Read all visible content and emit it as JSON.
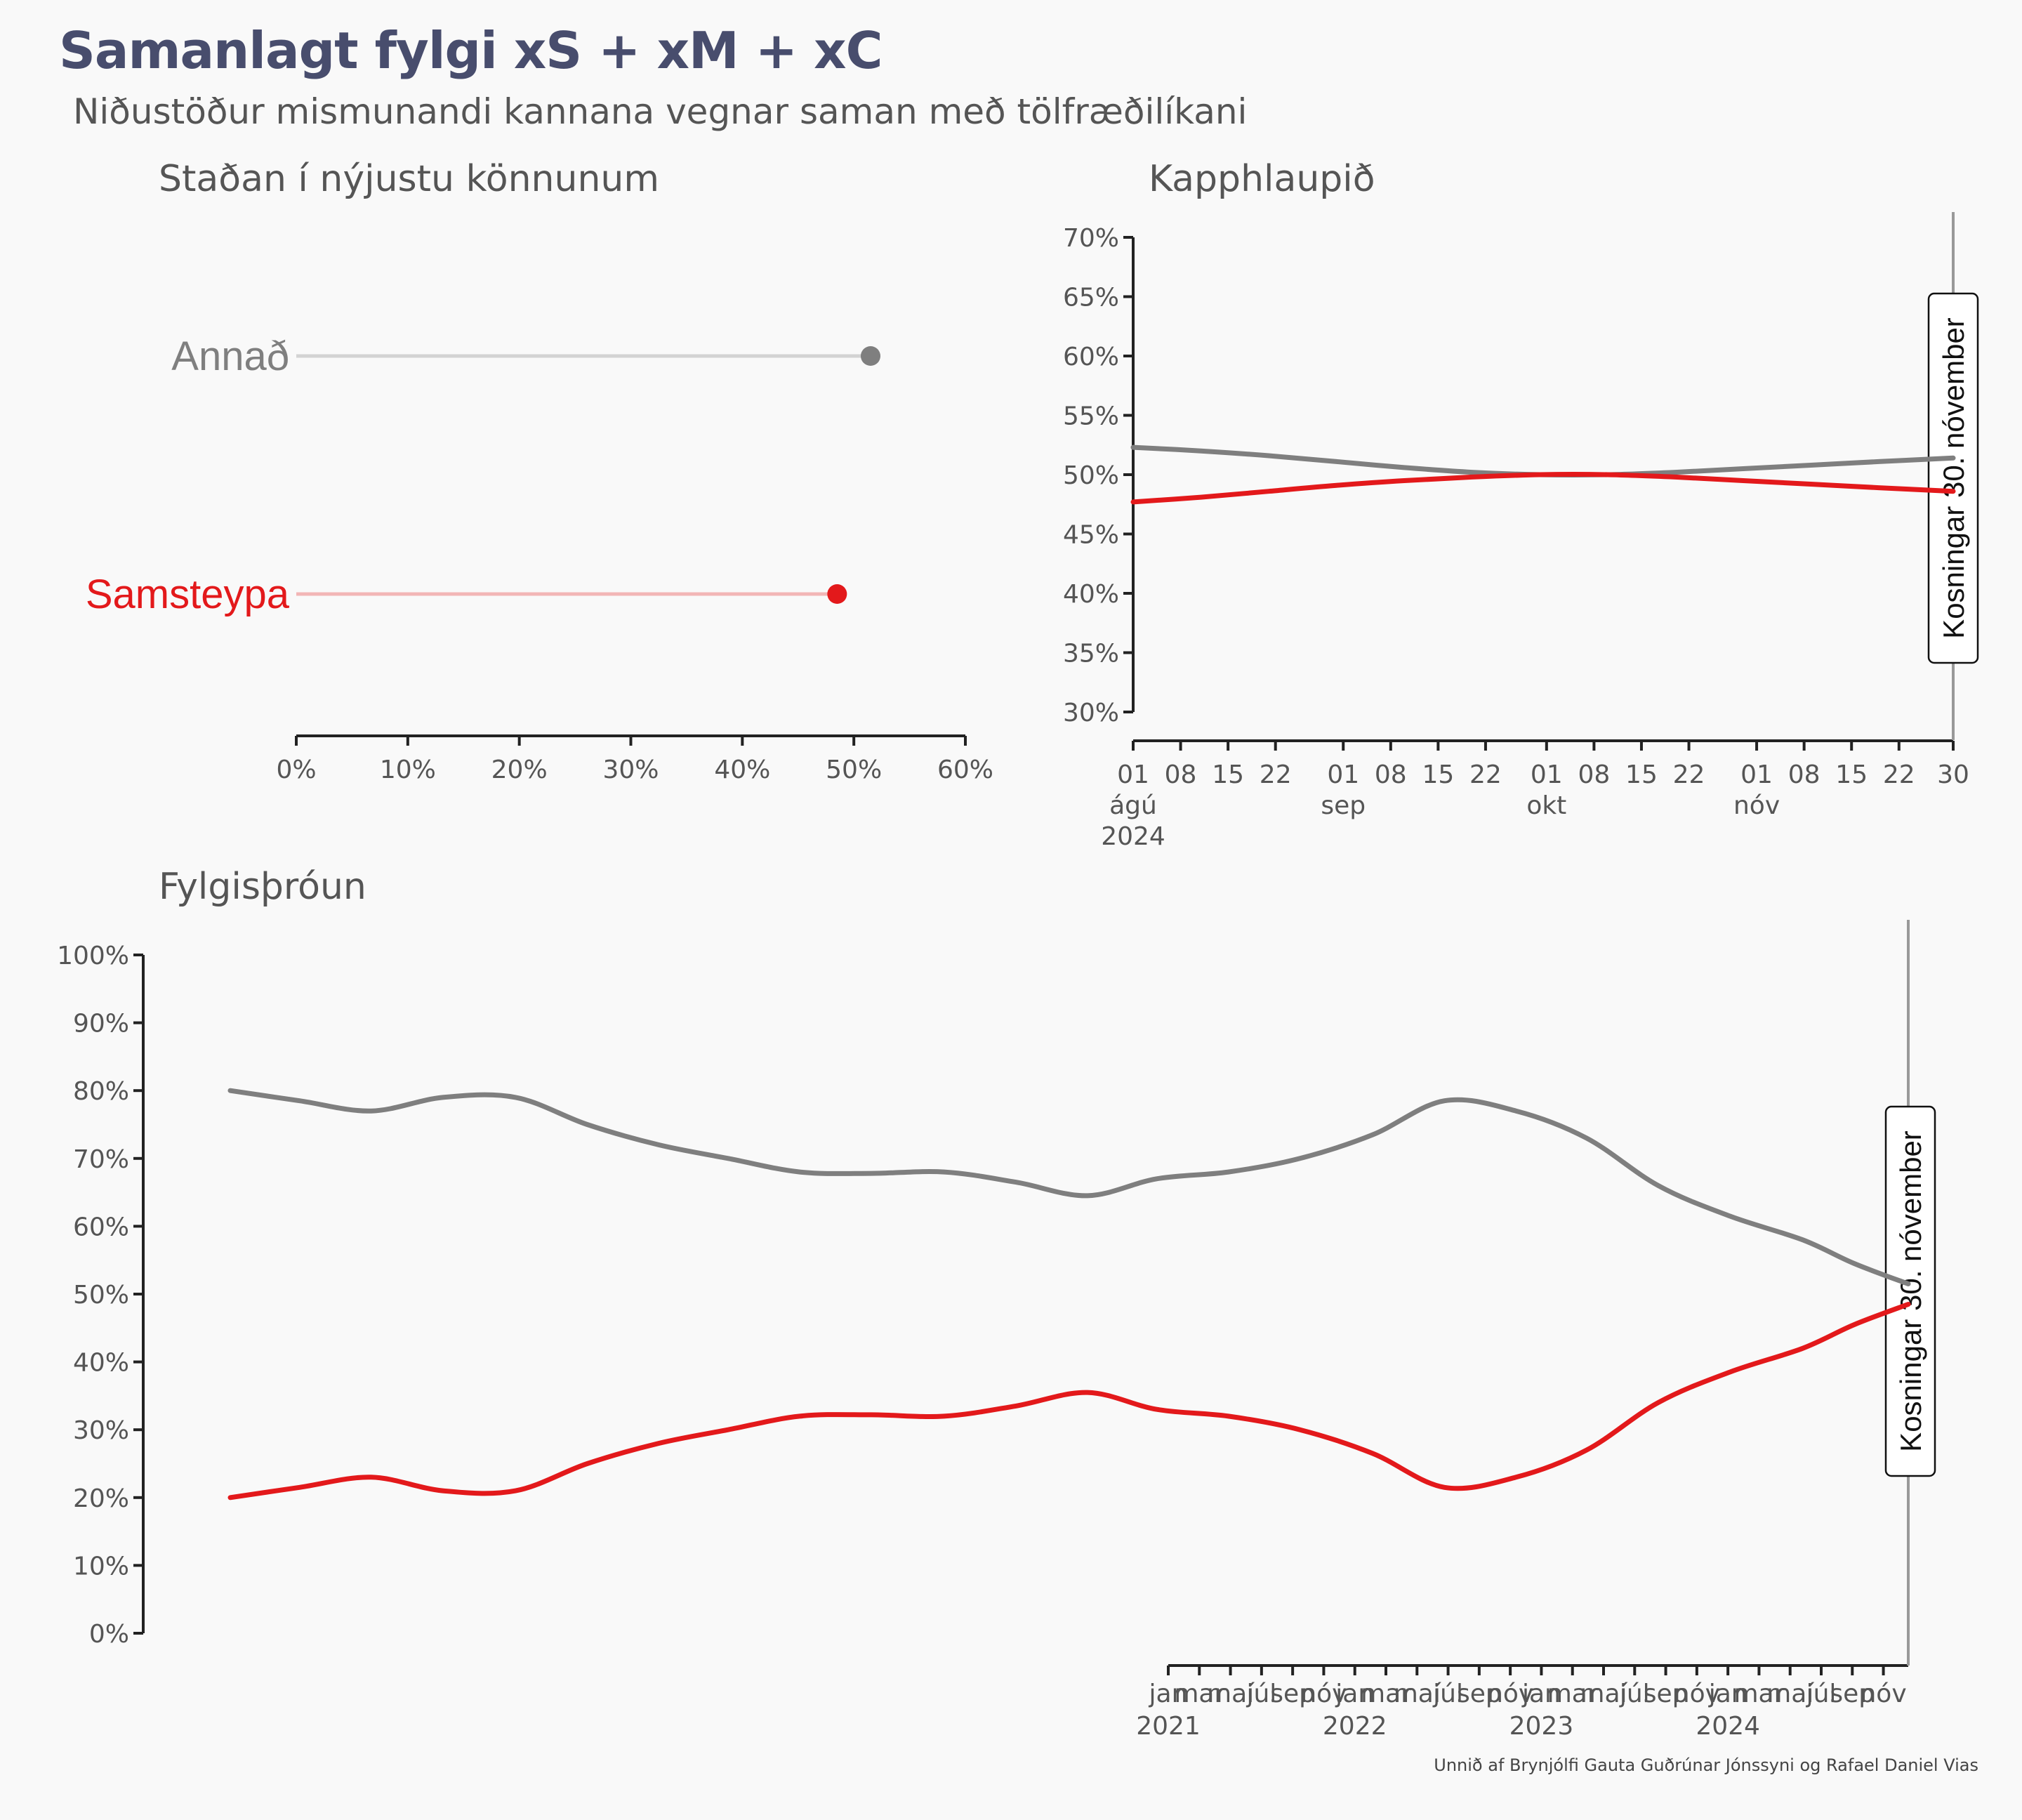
{
  "header": {
    "title": "Samanlagt fylgi xS + xM + xC",
    "subtitle": "Niðustöður mismunandi kannana vegnar saman með tölfræðilíkani"
  },
  "caption": "Unnið af Brynjólfi Gauta Guðrúnar Jónssyni og Rafael Daniel Vias",
  "colors": {
    "samsteypa": "#e3191b",
    "annad": "#7f7f7f",
    "samsteypa_light": "#f2b6b6",
    "annad_light": "#d3d3d3",
    "title": "#484d6d"
  },
  "election_label": "Kosningar 30. nóvember",
  "chart_data": [
    {
      "id": "latest",
      "type": "dot",
      "title": "Staðan í nýjustu könnunum",
      "categories": [
        "Annað",
        "Samsteypa"
      ],
      "values": [
        51.5,
        48.5
      ],
      "xlim": [
        0,
        60
      ],
      "xticks": [
        0,
        10,
        20,
        30,
        40,
        50,
        60
      ],
      "xtick_labels": [
        "0%",
        "10%",
        "20%",
        "30%",
        "40%",
        "50%",
        "60%"
      ]
    },
    {
      "id": "race",
      "type": "line",
      "title": "Kapphlaupið",
      "x_dates": [
        "2024-08-01",
        "2024-08-11",
        "2024-08-21",
        "2024-08-31",
        "2024-09-10",
        "2024-09-20",
        "2024-09-30",
        "2024-10-10",
        "2024-10-20",
        "2024-10-30",
        "2024-11-09",
        "2024-11-19",
        "2024-11-30"
      ],
      "series": [
        {
          "name": "Annað",
          "values": [
            52.3,
            52.0,
            51.6,
            51.1,
            50.6,
            50.2,
            50.0,
            50.0,
            50.2,
            50.5,
            50.8,
            51.1,
            51.4
          ]
        },
        {
          "name": "Samsteypa",
          "values": [
            47.7,
            48.1,
            48.6,
            49.1,
            49.5,
            49.8,
            50.0,
            50.0,
            49.8,
            49.5,
            49.2,
            48.9,
            48.6
          ]
        }
      ],
      "ylim": [
        30,
        70
      ],
      "yticks": [
        "30%",
        "35%",
        "40%",
        "45%",
        "50%",
        "55%",
        "60%",
        "65%",
        "70%"
      ],
      "xticks": [
        {
          "date": "2024-08-01",
          "day": "01",
          "month": "ágú",
          "year": "2024"
        },
        {
          "date": "2024-08-08",
          "day": "08"
        },
        {
          "date": "2024-08-15",
          "day": "15"
        },
        {
          "date": "2024-08-22",
          "day": "22"
        },
        {
          "date": "2024-09-01",
          "day": "01",
          "month": "sep"
        },
        {
          "date": "2024-09-08",
          "day": "08"
        },
        {
          "date": "2024-09-15",
          "day": "15"
        },
        {
          "date": "2024-09-22",
          "day": "22"
        },
        {
          "date": "2024-10-01",
          "day": "01",
          "month": "okt"
        },
        {
          "date": "2024-10-08",
          "day": "08"
        },
        {
          "date": "2024-10-15",
          "day": "15"
        },
        {
          "date": "2024-10-22",
          "day": "22"
        },
        {
          "date": "2024-11-01",
          "day": "01",
          "month": "nóv"
        },
        {
          "date": "2024-11-08",
          "day": "08"
        },
        {
          "date": "2024-11-15",
          "day": "15"
        },
        {
          "date": "2024-11-22",
          "day": "22"
        },
        {
          "date": "2024-11-30",
          "day": "30"
        }
      ]
    },
    {
      "id": "trend",
      "type": "line",
      "title": "Fylgisþróun",
      "x_dates": [
        "2021-01-01",
        "2021-03-01",
        "2021-05-01",
        "2021-07-01",
        "2021-09-01",
        "2021-11-01",
        "2022-01-01",
        "2022-03-01",
        "2022-05-01",
        "2022-07-01",
        "2022-09-01",
        "2022-11-01",
        "2023-01-01",
        "2023-03-01",
        "2023-05-01",
        "2023-07-01",
        "2023-09-01",
        "2023-11-01",
        "2024-01-01",
        "2024-03-01",
        "2024-05-01",
        "2024-07-01",
        "2024-09-01",
        "2024-10-15",
        "2024-11-30"
      ],
      "series": [
        {
          "name": "Annað",
          "values": [
            80.0,
            78.5,
            77.0,
            79.0,
            79.0,
            75.0,
            72.0,
            70.0,
            68.0,
            67.8,
            68.0,
            66.5,
            64.5,
            67.0,
            68.0,
            70.0,
            73.5,
            78.5,
            77.0,
            73.0,
            66.0,
            61.5,
            58.0,
            54.5,
            51.5
          ]
        },
        {
          "name": "Samsteypa",
          "values": [
            20.0,
            21.5,
            23.0,
            21.0,
            21.0,
            25.0,
            28.0,
            30.0,
            32.0,
            32.2,
            32.0,
            33.5,
            35.5,
            33.0,
            32.0,
            30.0,
            26.5,
            21.5,
            23.0,
            27.0,
            34.0,
            38.5,
            42.0,
            45.5,
            48.5
          ]
        }
      ],
      "ylim": [
        0,
        100
      ],
      "yticks": [
        "0%",
        "10%",
        "20%",
        "30%",
        "40%",
        "50%",
        "60%",
        "70%",
        "80%",
        "90%",
        "100%"
      ],
      "xtick_labels": [
        "jan",
        "mar",
        "maí",
        "júl",
        "sep",
        "nóv",
        "jan",
        "mar",
        "maí",
        "júl",
        "sep",
        "nóv",
        "jan",
        "mar",
        "maí",
        "júl",
        "sep",
        "nóv",
        "jan",
        "mar",
        "maí",
        "júl",
        "sep",
        "nóv"
      ],
      "year_labels": [
        "2021",
        "2022",
        "2023",
        "2024"
      ]
    }
  ]
}
